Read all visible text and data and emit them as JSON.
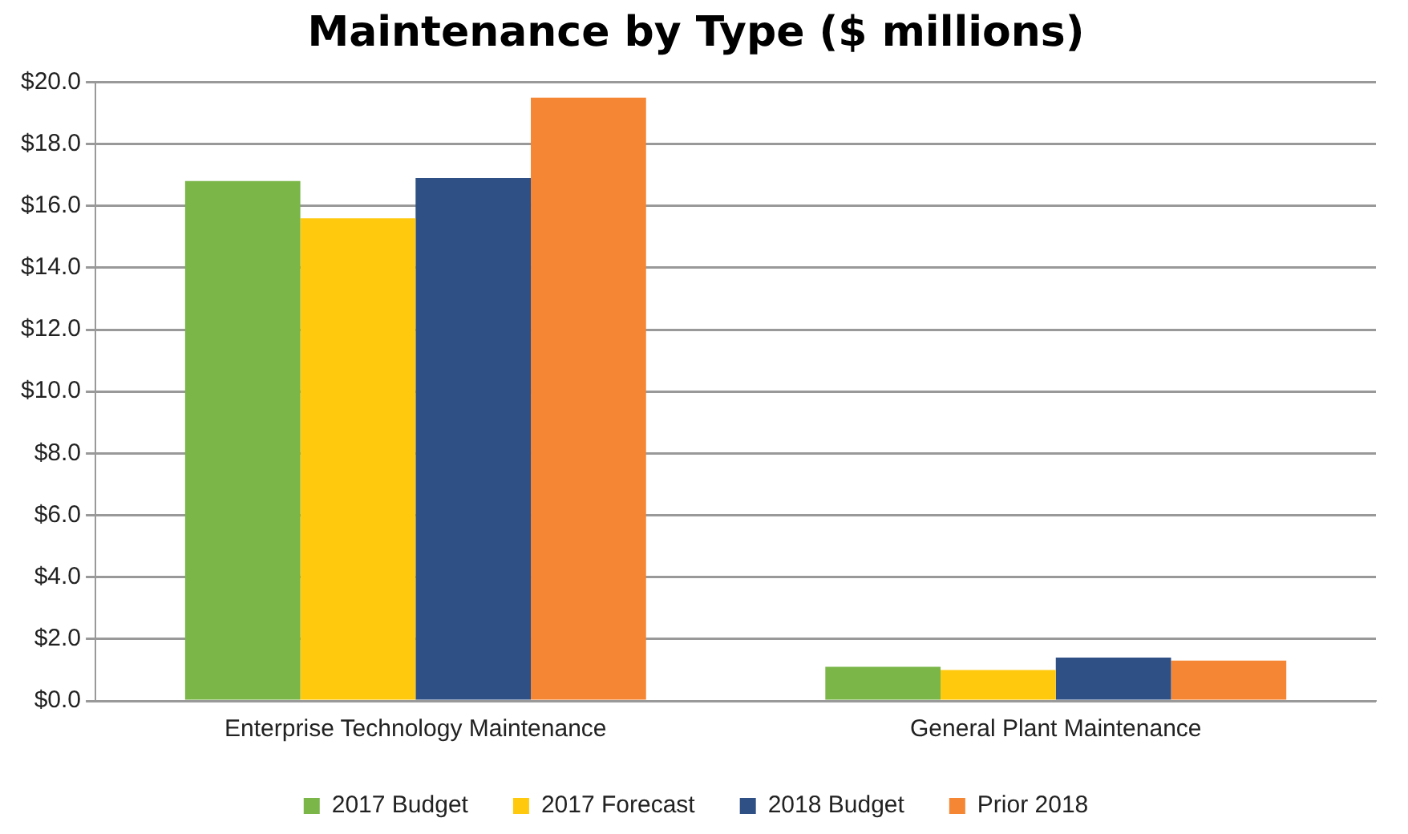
{
  "chart_data": {
    "type": "bar",
    "title": "Maintenance by Type ($ millions)",
    "categories": [
      "Enterprise Technology Maintenance",
      "General Plant Maintenance"
    ],
    "series": [
      {
        "name": "2017 Budget",
        "color": "#7ab648",
        "values": [
          16.8,
          1.1
        ]
      },
      {
        "name": "2017 Forecast",
        "color": "#ffc90e",
        "values": [
          15.6,
          1.0
        ]
      },
      {
        "name": "2018 Budget",
        "color": "#2f5085",
        "values": [
          16.9,
          1.4
        ]
      },
      {
        "name": "Prior 2018",
        "color": "#f58634",
        "values": [
          19.5,
          1.3
        ]
      }
    ],
    "ylim": [
      0,
      20
    ],
    "yticks": [
      {
        "value": 0,
        "label": "$0.0"
      },
      {
        "value": 2,
        "label": "$2.0"
      },
      {
        "value": 4,
        "label": "$4.0"
      },
      {
        "value": 6,
        "label": "$6.0"
      },
      {
        "value": 8,
        "label": "$8.0"
      },
      {
        "value": 10,
        "label": "$10.0"
      },
      {
        "value": 12,
        "label": "$12.0"
      },
      {
        "value": 14,
        "label": "$14.0"
      },
      {
        "value": 16,
        "label": "$16.0"
      },
      {
        "value": 18,
        "label": "$18.0"
      },
      {
        "value": 20,
        "label": "$20.0"
      }
    ],
    "grid": "y",
    "legend": "bottom"
  }
}
